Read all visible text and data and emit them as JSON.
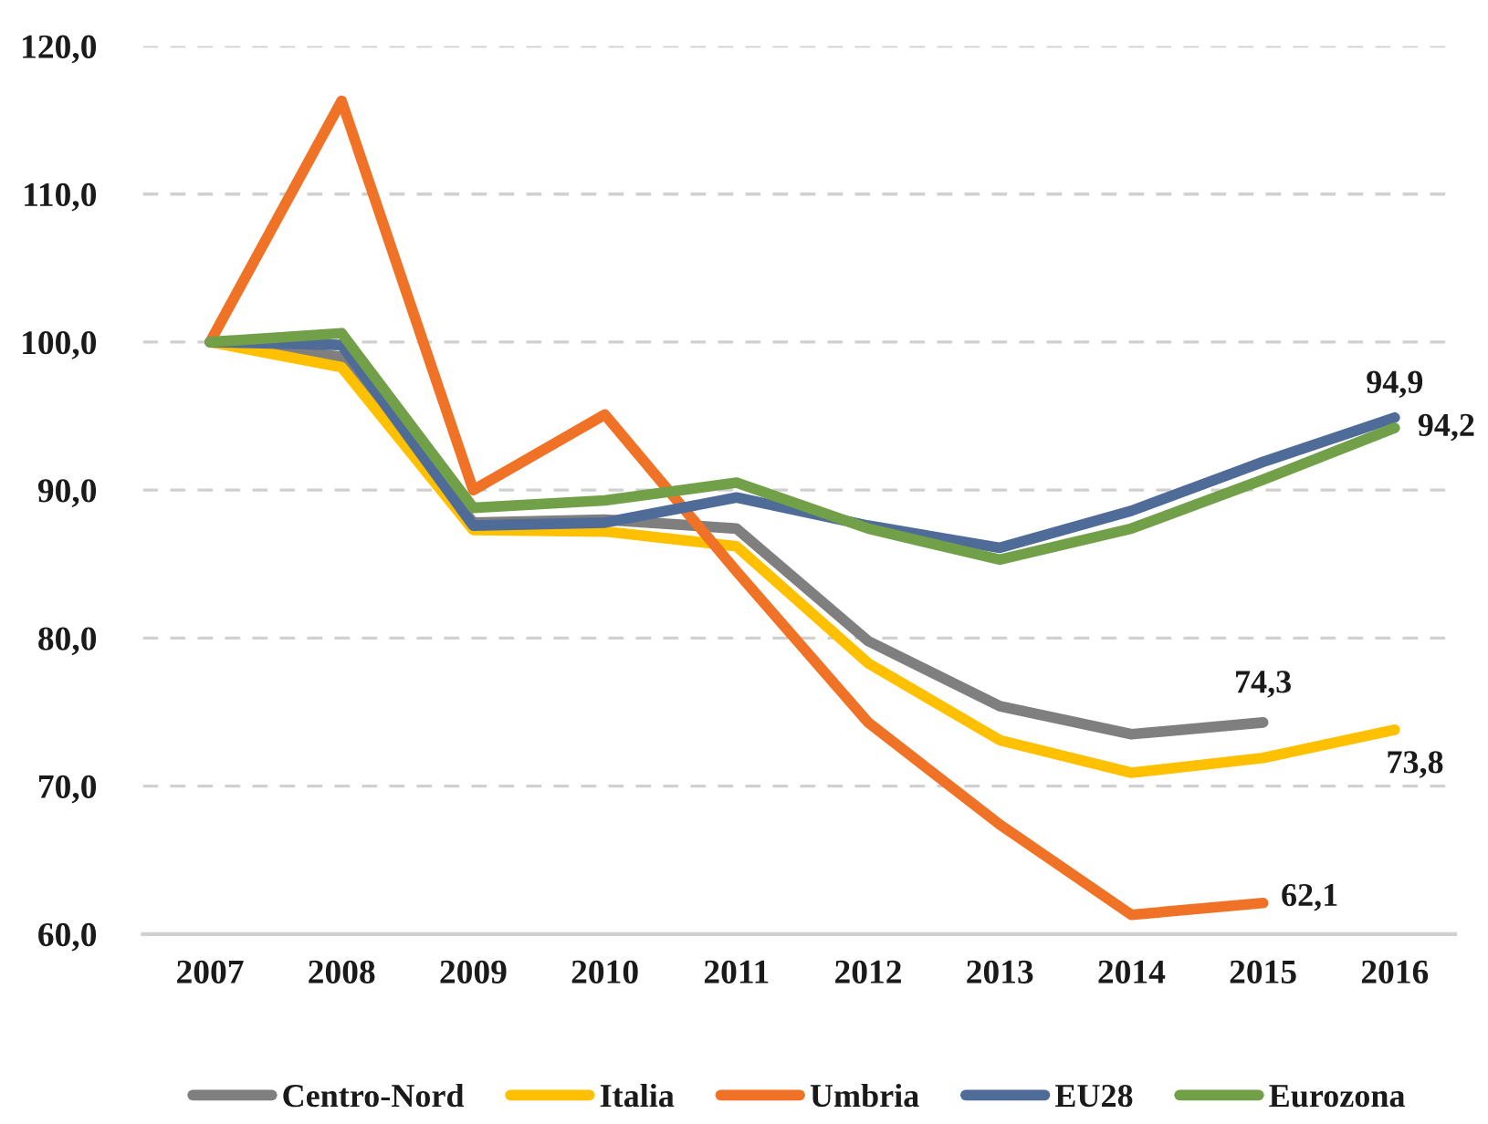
{
  "chart_data": {
    "type": "line",
    "categories": [
      "2007",
      "2008",
      "2009",
      "2010",
      "2011",
      "2012",
      "2013",
      "2014",
      "2015",
      "2016"
    ],
    "series": [
      {
        "name": "Centro-Nord",
        "color": "#7f7f7f",
        "values": [
          100,
          99.0,
          87.8,
          88.0,
          87.4,
          79.8,
          75.4,
          73.5,
          74.3,
          null
        ],
        "value_labels": [
          null,
          null,
          null,
          null,
          null,
          null,
          null,
          null,
          "74,3",
          null
        ]
      },
      {
        "name": "Italia",
        "color": "#ffc000",
        "values": [
          100,
          98.3,
          87.3,
          87.2,
          86.2,
          78.3,
          73.1,
          70.9,
          71.9,
          73.8
        ],
        "value_labels": [
          null,
          null,
          null,
          null,
          null,
          null,
          null,
          null,
          null,
          "73,8"
        ]
      },
      {
        "name": "Umbria",
        "color": "#f07226",
        "values": [
          100,
          116.3,
          90.0,
          95.1,
          84.5,
          74.3,
          67.4,
          61.3,
          62.1,
          null
        ],
        "value_labels": [
          null,
          null,
          null,
          null,
          null,
          null,
          null,
          null,
          "62,1",
          null
        ]
      },
      {
        "name": "EU28",
        "color": "#4f6c99",
        "values": [
          100,
          99.8,
          87.6,
          87.8,
          89.5,
          87.6,
          86.1,
          88.6,
          91.9,
          94.9
        ],
        "value_labels": [
          null,
          null,
          null,
          null,
          null,
          null,
          null,
          null,
          null,
          "94,9"
        ]
      },
      {
        "name": "Eurozona",
        "color": "#72a049",
        "values": [
          100,
          100.6,
          88.8,
          89.3,
          90.5,
          87.4,
          85.3,
          87.4,
          90.7,
          94.2
        ],
        "value_labels": [
          null,
          null,
          null,
          null,
          null,
          null,
          null,
          null,
          null,
          "94,2"
        ]
      }
    ],
    "ylim": [
      60,
      120
    ],
    "yticks": [
      {
        "value": 60,
        "label": "60,0"
      },
      {
        "value": 70,
        "label": "70,0"
      },
      {
        "value": 80,
        "label": "80,0"
      },
      {
        "value": 90,
        "label": "90,0"
      },
      {
        "value": 100,
        "label": "100,0"
      },
      {
        "value": 110,
        "label": "110,0"
      },
      {
        "value": 120,
        "label": "120,0"
      }
    ],
    "grid": "y",
    "legend": "bottom",
    "marker": "none",
    "line_style": "solid"
  }
}
